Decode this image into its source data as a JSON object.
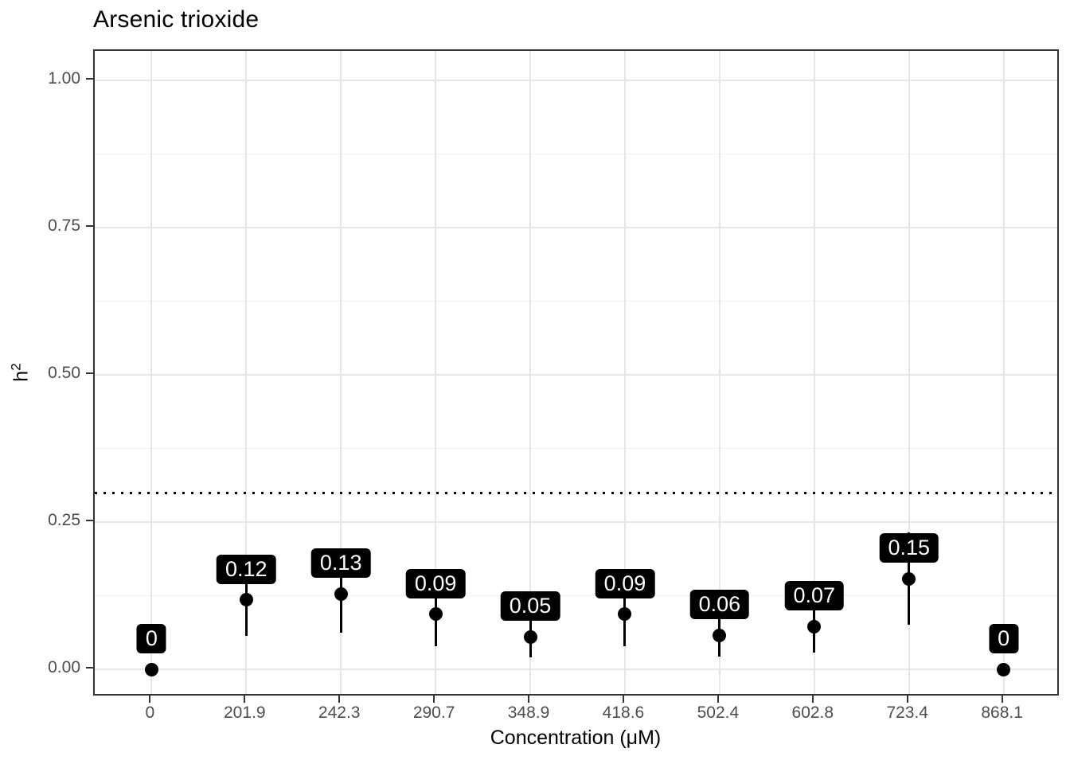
{
  "chart_data": {
    "type": "scatter",
    "title": "Arsenic trioxide",
    "xlabel": "Concentration (μM)",
    "ylabel": {
      "base": "h",
      "sup": "2"
    },
    "legend": "none",
    "grid": true,
    "categories": [
      "0",
      "201.9",
      "242.3",
      "290.7",
      "348.9",
      "418.6",
      "502.4",
      "602.8",
      "723.4",
      "868.1"
    ],
    "points": [
      {
        "category": "0",
        "value": 0.0,
        "label": "0",
        "lower": null,
        "upper": null
      },
      {
        "category": "201.9",
        "value": 0.118,
        "label": "0.12",
        "lower": 0.057,
        "upper": 0.179
      },
      {
        "category": "242.3",
        "value": 0.128,
        "label": "0.13",
        "lower": 0.062,
        "upper": 0.194
      },
      {
        "category": "290.7",
        "value": 0.094,
        "label": "0.09",
        "lower": 0.039,
        "upper": 0.149
      },
      {
        "category": "348.9",
        "value": 0.055,
        "label": "0.05",
        "lower": 0.021,
        "upper": 0.089
      },
      {
        "category": "418.6",
        "value": 0.094,
        "label": "0.09",
        "lower": 0.039,
        "upper": 0.149
      },
      {
        "category": "502.4",
        "value": 0.058,
        "label": "0.06",
        "lower": 0.022,
        "upper": 0.094
      },
      {
        "category": "602.8",
        "value": 0.073,
        "label": "0.07",
        "lower": 0.028,
        "upper": 0.118
      },
      {
        "category": "723.4",
        "value": 0.154,
        "label": "0.15",
        "lower": 0.076,
        "upper": 0.232
      },
      {
        "category": "868.1",
        "value": 0.0,
        "label": "0",
        "lower": null,
        "upper": null
      }
    ],
    "y_axis": {
      "ticks": [
        {
          "label": "0.00",
          "value": 0.0
        },
        {
          "label": "0.25",
          "value": 0.25
        },
        {
          "label": "0.50",
          "value": 0.5
        },
        {
          "label": "0.75",
          "value": 0.75
        },
        {
          "label": "1.00",
          "value": 1.0
        }
      ],
      "minor": [
        0.125,
        0.375,
        0.625,
        0.875
      ],
      "lim": [
        -0.047,
        1.05
      ]
    },
    "reference_line": {
      "value": 0.3,
      "style": "dotted"
    },
    "colors": {
      "point": "#000000",
      "error_bar": "#000000",
      "label_bg": "#000000",
      "label_text": "#ffffff",
      "grid_major": "#e6e6e6",
      "grid_minor": "#f0f0f0",
      "panel_border": "#333333",
      "tick_mark": "#333333",
      "tick_text": "#4d4d4d",
      "title_text": "#000000",
      "reference": "#000000"
    }
  }
}
